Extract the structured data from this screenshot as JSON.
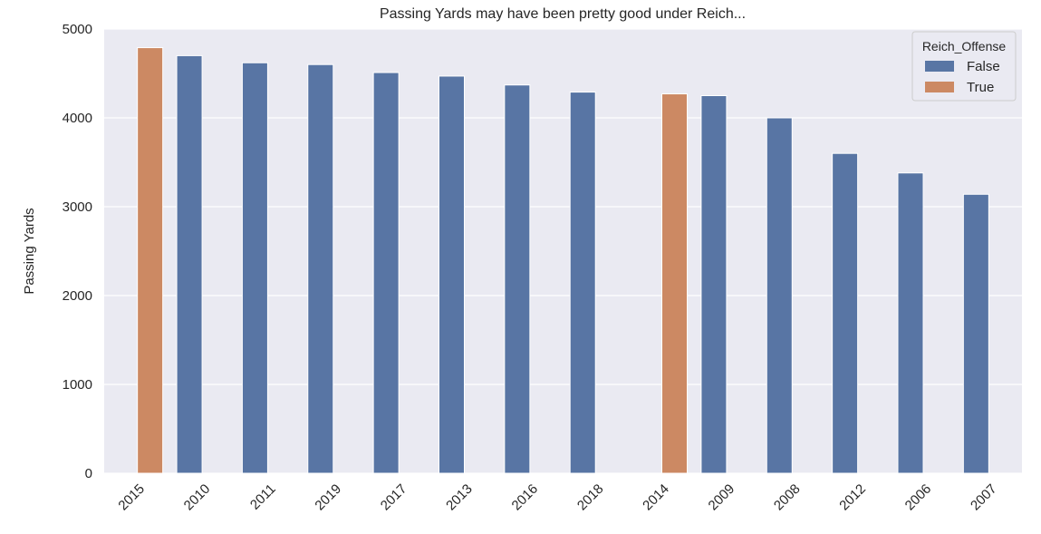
{
  "chart_data": {
    "type": "bar",
    "title": "Passing Yards may have been pretty good under Reich...",
    "xlabel": "",
    "ylabel": "Passing Yards",
    "ylim": [
      0,
      5000
    ],
    "yticks": [
      0,
      1000,
      2000,
      3000,
      4000,
      5000
    ],
    "grid": true,
    "hue_label": "Reich_Offense",
    "categories": [
      "2015",
      "2010",
      "2011",
      "2019",
      "2017",
      "2013",
      "2016",
      "2018",
      "2014",
      "2009",
      "2008",
      "2012",
      "2006",
      "2007"
    ],
    "series": [
      {
        "name": "False",
        "color": "#5875a4",
        "values": [
          null,
          4700,
          4620,
          4600,
          4510,
          4470,
          4370,
          4290,
          null,
          4250,
          4000,
          3600,
          3380,
          3140
        ]
      },
      {
        "name": "True",
        "color": "#cc8963",
        "values": [
          4790,
          null,
          null,
          null,
          null,
          null,
          null,
          null,
          4270,
          null,
          null,
          null,
          null,
          null
        ]
      }
    ],
    "legend": {
      "title": "Reich_Offense",
      "position": "top-right",
      "entries": [
        "False",
        "True"
      ]
    },
    "colors": {
      "background": "#eaeaf2",
      "grid": "#ffffff",
      "false": "#5875a4",
      "true": "#cc8963"
    }
  }
}
